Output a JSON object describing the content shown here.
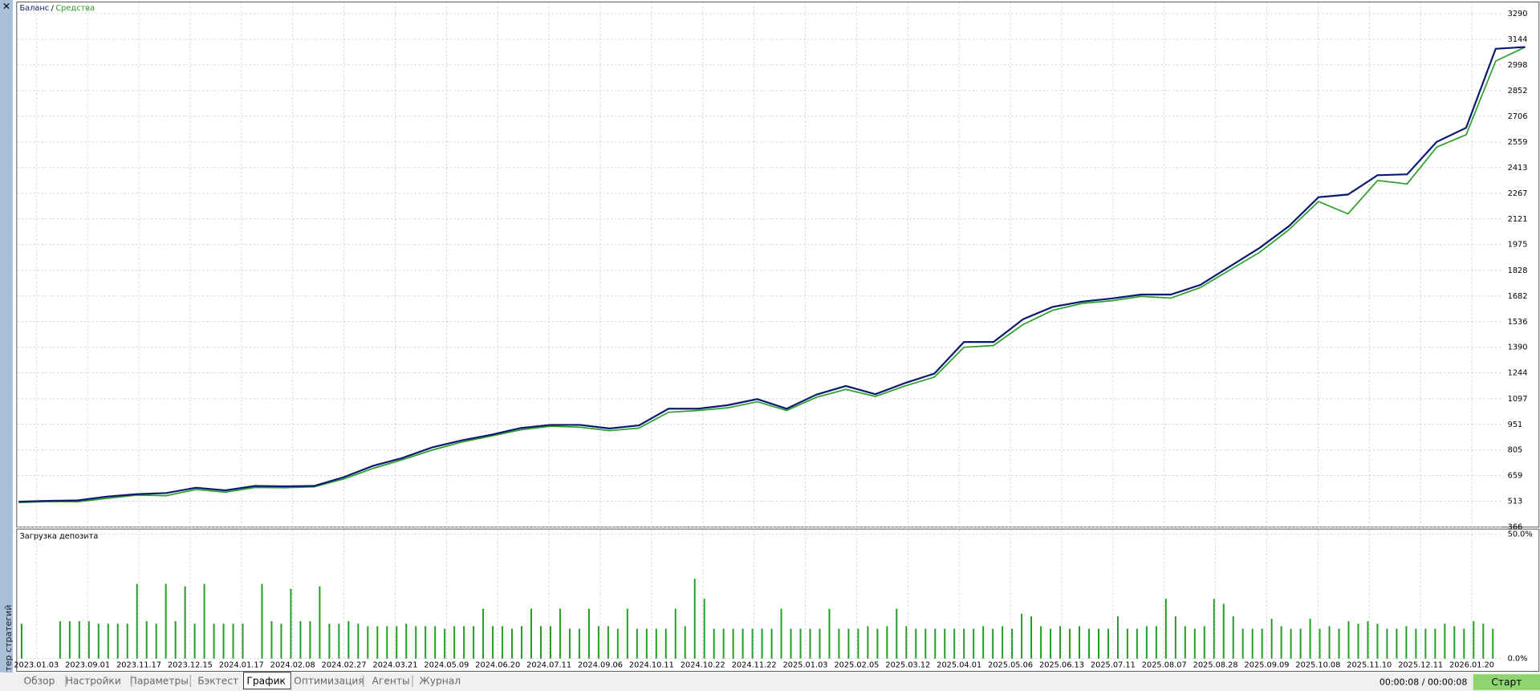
{
  "window": {
    "side_title": "Тестер стратегий",
    "tabs": [
      "Обзор",
      "Настройки",
      "Параметры",
      "Бэктест",
      "График",
      "Оптимизация",
      "Агенты",
      "Журнал"
    ],
    "timer": "00:00:08 / 00:00:08",
    "start_button": "Старт"
  },
  "chart_data": [
    {
      "type": "line",
      "legend_separator": "/",
      "ylim": [
        366,
        3351
      ],
      "yticks": [
        366,
        513,
        659,
        805,
        951,
        1097,
        1244,
        1390,
        1536,
        1682,
        1828,
        1975,
        2121,
        2267,
        2413,
        2559,
        2706,
        2852,
        2998,
        3144,
        3290
      ],
      "grid": true,
      "series": [
        {
          "name": "Баланс",
          "color": "#0a1a6e",
          "values": [
            511,
            515,
            518,
            540,
            553,
            560,
            590,
            575,
            600,
            598,
            600,
            650,
            715,
            760,
            820,
            860,
            892,
            930,
            948,
            948,
            928,
            945,
            1040,
            1040,
            1060,
            1095,
            1040,
            1120,
            1170,
            1123,
            1186,
            1240,
            1420,
            1420,
            1550,
            1620,
            1650,
            1668,
            1690,
            1690,
            1745,
            1850,
            1955,
            2080,
            2245,
            2260,
            2370,
            2375,
            2560,
            2640,
            3090,
            3100
          ]
        },
        {
          "name": "Средства",
          "color": "#2ca02c",
          "values": [
            505,
            512,
            510,
            530,
            548,
            545,
            580,
            565,
            592,
            590,
            595,
            640,
            700,
            750,
            805,
            850,
            885,
            920,
            940,
            935,
            915,
            930,
            1020,
            1030,
            1045,
            1080,
            1030,
            1105,
            1150,
            1110,
            1170,
            1220,
            1390,
            1400,
            1520,
            1600,
            1640,
            1655,
            1680,
            1670,
            1730,
            1830,
            1930,
            2060,
            2220,
            2150,
            2340,
            2320,
            2530,
            2600,
            3020,
            3100
          ]
        }
      ]
    },
    {
      "type": "bar",
      "title": "Загрузка депозита",
      "color": "#1f9e1f",
      "ylim": [
        0,
        50
      ],
      "yticks": [
        {
          "value": 0,
          "label": "0.0%"
        },
        {
          "value": 50,
          "label": "50.0%"
        }
      ],
      "grid": true,
      "date_labels": [
        "2023.01.03",
        "2023.09.01",
        "2023.11.17",
        "2023.12.15",
        "2024.01.17",
        "2024.02.08",
        "2024.02.27",
        "2024.03.21",
        "2024.05.09",
        "2024.06.20",
        "2024.07.11",
        "2024.09.06",
        "2024.10.11",
        "2024.10.22",
        "2024.11.22",
        "2025.01.03",
        "2025.02.05",
        "2025.03.12",
        "2025.04.01",
        "2025.05.06",
        "2025.06.13",
        "2025.07.11",
        "2025.08.07",
        "2025.08.28",
        "2025.09.09",
        "2025.10.08",
        "2025.11.10",
        "2025.12.11",
        "2026.01.20"
      ],
      "values": [
        14,
        0,
        0,
        0,
        15,
        15,
        15,
        15,
        14,
        14,
        14,
        14,
        30,
        15,
        14,
        30,
        15,
        29,
        14,
        30,
        14,
        14,
        14,
        14,
        0,
        30,
        15,
        14,
        28,
        15,
        15,
        29,
        14,
        14,
        15,
        14,
        13,
        13,
        13,
        13,
        14,
        13,
        13,
        13,
        12,
        13,
        13,
        13,
        20,
        13,
        13,
        12,
        13,
        20,
        13,
        13,
        20,
        12,
        12,
        20,
        13,
        13,
        12,
        20,
        12,
        12,
        12,
        12,
        20,
        13,
        32,
        24,
        12,
        12,
        12,
        12,
        12,
        12,
        12,
        20,
        12,
        12,
        12,
        12,
        20,
        12,
        12,
        12,
        13,
        12,
        13,
        20,
        13,
        12,
        12,
        12,
        12,
        12,
        12,
        12,
        13,
        12,
        13,
        12,
        18,
        17,
        13,
        12,
        13,
        12,
        13,
        12,
        12,
        12,
        17,
        12,
        12,
        13,
        13,
        24,
        17,
        13,
        12,
        13,
        24,
        22,
        17,
        12,
        12,
        12,
        16,
        13,
        12,
        12,
        16,
        12,
        13,
        12,
        15,
        14,
        15,
        14,
        12,
        12,
        13,
        12,
        12,
        12,
        14,
        13,
        12,
        15,
        14,
        12
      ]
    }
  ]
}
